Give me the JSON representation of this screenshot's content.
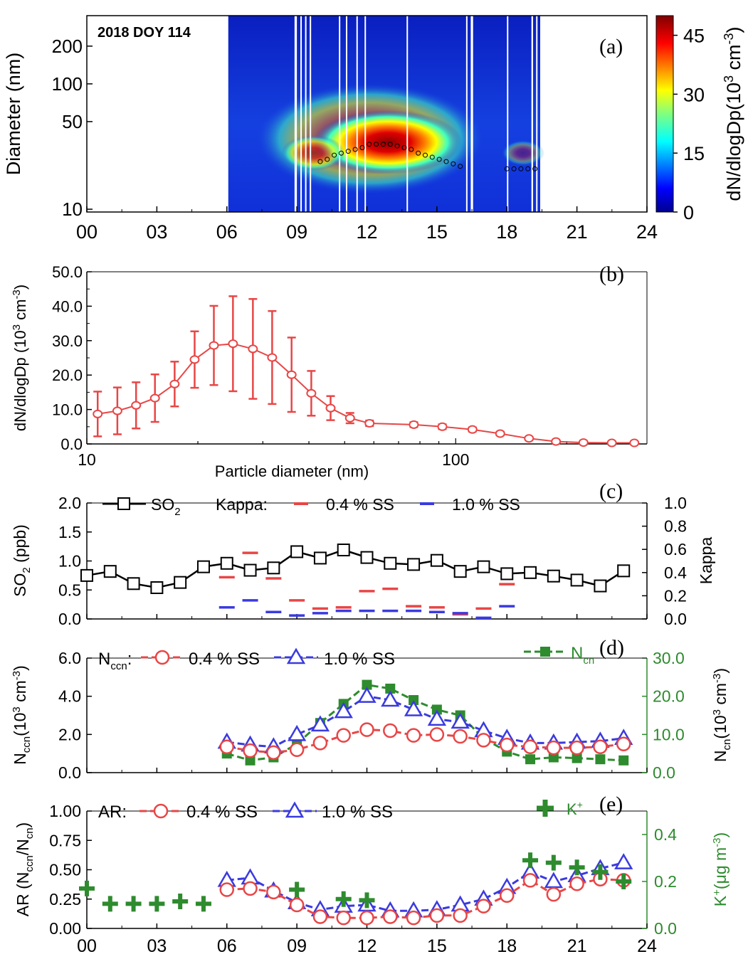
{
  "colors": {
    "red": "#e84646",
    "blue": "#3a3ae0",
    "green": "#2e8b2e",
    "black": "#000000"
  },
  "chart_data": [
    {
      "panel": "(a)",
      "type": "heatmap",
      "annotation": "2018 DOY 114",
      "ylabel": "Diameter (nm)",
      "colorbar_label": "dN/dlogDp(10^3 cm^-3)",
      "colorbar_ticks": [
        "0",
        "15",
        "30",
        "45"
      ],
      "colorbar_range": [
        0,
        50
      ],
      "x_ticks": [
        "00",
        "03",
        "06",
        "09",
        "12",
        "15",
        "18",
        "21",
        "24"
      ],
      "y_ticks": [
        "10",
        "50",
        "100",
        "200"
      ],
      "xlim": [
        0,
        24
      ],
      "ylim": [
        9.5,
        350
      ],
      "ylog": true,
      "data_coverage_hours": [
        6.0,
        19.4
      ],
      "mode_diameter_points": [
        [
          10.0,
          24
        ],
        [
          10.3,
          25
        ],
        [
          10.6,
          27
        ],
        [
          10.9,
          28
        ],
        [
          11.2,
          29
        ],
        [
          11.5,
          30
        ],
        [
          11.8,
          31
        ],
        [
          12.1,
          33
        ],
        [
          12.4,
          33
        ],
        [
          12.7,
          33
        ],
        [
          13.0,
          33
        ],
        [
          13.3,
          32
        ],
        [
          13.6,
          31
        ],
        [
          13.9,
          30
        ],
        [
          14.2,
          28
        ],
        [
          14.5,
          27
        ],
        [
          14.8,
          26
        ],
        [
          15.1,
          25
        ],
        [
          15.4,
          24
        ],
        [
          15.7,
          23
        ],
        [
          16.0,
          22
        ],
        [
          18.0,
          21
        ],
        [
          18.3,
          21
        ],
        [
          18.6,
          21
        ],
        [
          18.9,
          21
        ],
        [
          19.2,
          21
        ]
      ]
    },
    {
      "panel": "(b)",
      "type": "line",
      "xlabel": "Particle diameter (nm)",
      "ylabel": "dN/dlogDp (10^3 cm^-3)",
      "x_ticks": [
        "10",
        "100"
      ],
      "y_ticks": [
        "0.0",
        "10.0",
        "20.0",
        "30.0",
        "40.0",
        "50.0"
      ],
      "xlog": true,
      "xlim": [
        10,
        330
      ],
      "ylim": [
        0,
        50
      ],
      "x": [
        10.7,
        12.1,
        13.6,
        15.3,
        17.3,
        19.6,
        22.1,
        24.9,
        28.2,
        31.8,
        35.9,
        40.6,
        45.8,
        51.7,
        58.4,
        77,
        92,
        111,
        132,
        158,
        187,
        222,
        265,
        305
      ],
      "values": [
        8.7,
        9.6,
        11.2,
        13.3,
        17.4,
        24.5,
        28.6,
        29.1,
        27.6,
        25.1,
        20.1,
        14.7,
        10.4,
        7.5,
        6.0,
        5.6,
        5.0,
        4.2,
        3.0,
        1.6,
        0.7,
        0.4,
        0.3,
        0.3
      ],
      "errors": [
        6.5,
        6.8,
        6.7,
        6.9,
        6.5,
        8.2,
        11.5,
        13.8,
        14.5,
        13.5,
        10.8,
        6.5,
        3.5,
        1.5,
        0.8,
        0.7,
        0.7,
        0.6,
        0.5,
        0.4,
        0.2,
        0.1,
        0.1,
        0.1
      ]
    },
    {
      "panel": "(c)",
      "type": "line",
      "ylabel": "SO2 (ppb)",
      "y2label": "Kappa",
      "y_ticks": [
        "0.0",
        "0.5",
        "1.0",
        "1.5",
        "2.0"
      ],
      "y2_ticks": [
        "0.0",
        "0.2",
        "0.4",
        "0.6",
        "0.8",
        "1.0"
      ],
      "ylim": [
        0,
        2.0
      ],
      "y2lim": [
        0,
        1.0
      ],
      "legend": {
        "so2": "SO",
        "so2_sub": "2",
        "kappa_prefix": "Kappa:",
        "s04": "0.4 % SS",
        "s10": "1.0 % SS"
      },
      "series": [
        {
          "name": "SO2",
          "x": [
            0,
            1,
            2,
            3,
            4,
            5,
            6,
            7,
            8,
            9,
            10,
            11,
            12,
            13,
            14,
            15,
            16,
            17,
            18,
            19,
            20,
            21,
            22,
            23
          ],
          "values": [
            0.75,
            0.82,
            0.61,
            0.54,
            0.63,
            0.9,
            0.96,
            0.84,
            0.88,
            1.16,
            1.05,
            1.19,
            1.06,
            0.96,
            0.94,
            1.01,
            0.82,
            0.9,
            0.78,
            0.8,
            0.74,
            0.67,
            0.57,
            0.83
          ]
        },
        {
          "name": "0.4 % SS",
          "x": [
            6,
            7,
            8,
            9,
            10,
            11,
            12,
            13,
            14,
            15,
            16,
            17,
            18
          ],
          "values": [
            0.36,
            0.57,
            0.35,
            0.16,
            0.09,
            0.1,
            0.24,
            0.26,
            0.11,
            0.1,
            0.04,
            0.09,
            0.3
          ]
        },
        {
          "name": "1.0 % SS",
          "x": [
            6,
            7,
            8,
            9,
            10,
            11,
            12,
            13,
            14,
            15,
            16,
            17,
            18
          ],
          "values": [
            0.1,
            0.16,
            0.06,
            0.03,
            0.05,
            0.07,
            0.07,
            0.07,
            0.07,
            0.06,
            0.05,
            0.01,
            0.11
          ]
        }
      ]
    },
    {
      "panel": "(d)",
      "type": "line",
      "ylabel": "Nccn(10^3 cm^-3)",
      "y2label": "Ncn(10^3 cm^-3)",
      "y_ticks": [
        "0.0",
        "2.0",
        "4.0",
        "6.0"
      ],
      "y2_ticks": [
        "0.0",
        "10.0",
        "20.0",
        "30.0"
      ],
      "ylim": [
        0,
        6.0
      ],
      "y2lim": [
        0,
        30.0
      ],
      "legend": {
        "nccn_main": "N",
        "nccn_sub": "ccn",
        "nccn_colon": ":",
        "s04": "0.4 % SS",
        "s10": "1.0 % SS",
        "ncn_main": "N",
        "ncn_sub": "cn"
      },
      "series": [
        {
          "name": "0.4 % SS",
          "x": [
            6,
            7,
            8,
            9,
            10,
            11,
            12,
            13,
            14,
            15,
            16,
            17,
            18,
            19,
            20,
            21,
            22,
            23
          ],
          "values": [
            1.35,
            1.15,
            1.05,
            1.2,
            1.55,
            1.95,
            2.25,
            2.2,
            1.95,
            2.0,
            1.9,
            1.7,
            1.45,
            1.35,
            1.3,
            1.3,
            1.35,
            1.5
          ]
        },
        {
          "name": "1.0 % SS",
          "x": [
            6,
            7,
            8,
            9,
            10,
            11,
            12,
            13,
            14,
            15,
            16,
            17,
            18,
            19,
            20,
            21,
            22,
            23
          ],
          "values": [
            1.6,
            1.45,
            1.35,
            2.0,
            2.5,
            3.2,
            4.0,
            3.8,
            3.3,
            2.8,
            2.65,
            2.2,
            1.8,
            1.55,
            1.55,
            1.6,
            1.65,
            1.8
          ]
        },
        {
          "name": "Ncn",
          "x": [
            6,
            7,
            8,
            9,
            10,
            11,
            12,
            13,
            14,
            15,
            16,
            17,
            18,
            19,
            20,
            21,
            22,
            23
          ],
          "values": [
            5.0,
            3.2,
            4.0,
            7.5,
            13.0,
            18.0,
            23.0,
            22.0,
            19.0,
            16.5,
            15.0,
            9.0,
            5.5,
            3.5,
            4.0,
            3.8,
            3.5,
            3.2
          ]
        }
      ]
    },
    {
      "panel": "(e)",
      "type": "line",
      "ylabel": "AR (Nccn/Ncn)",
      "y2label": "K+(μg m^-3)",
      "y_ticks": [
        "0.00",
        "0.25",
        "0.50",
        "0.75",
        "1.00"
      ],
      "y2_ticks": [
        "0.0",
        "0.2",
        "0.4"
      ],
      "ylim": [
        0,
        1.0
      ],
      "y2lim": [
        0,
        0.5
      ],
      "x_ticks": [
        "00",
        "03",
        "06",
        "09",
        "12",
        "15",
        "18",
        "21",
        "24"
      ],
      "xlim": [
        0,
        24
      ],
      "legend": {
        "ar": "AR:",
        "s04": "0.4 % SS",
        "s10": "1.0 % SS",
        "k_main": "K",
        "k_sup": "+"
      },
      "series": [
        {
          "name": "0.4 % SS",
          "x": [
            6,
            7,
            8,
            9,
            10,
            11,
            12,
            13,
            14,
            15,
            16,
            17,
            18,
            19,
            20,
            21,
            22,
            23
          ],
          "values": [
            0.33,
            0.34,
            0.31,
            0.2,
            0.1,
            0.09,
            0.09,
            0.1,
            0.09,
            0.11,
            0.11,
            0.19,
            0.28,
            0.41,
            0.29,
            0.38,
            0.42,
            0.41
          ]
        },
        {
          "name": "1.0 % SS",
          "x": [
            6,
            7,
            8,
            9,
            10,
            11,
            12,
            13,
            14,
            15,
            16,
            17,
            18,
            19,
            20,
            21,
            22,
            23
          ],
          "values": [
            0.41,
            0.43,
            0.32,
            0.22,
            0.16,
            0.19,
            0.2,
            0.15,
            0.15,
            0.16,
            0.2,
            0.25,
            0.35,
            0.48,
            0.4,
            0.45,
            0.51,
            0.56
          ]
        },
        {
          "name": "K+",
          "x": [
            0,
            1,
            2,
            3,
            4,
            5,
            9,
            11,
            12,
            19,
            20,
            21,
            22,
            23
          ],
          "values": [
            0.17,
            0.105,
            0.105,
            0.105,
            0.115,
            0.105,
            0.165,
            0.125,
            0.12,
            0.29,
            0.28,
            0.26,
            0.24,
            0.2
          ]
        }
      ]
    }
  ]
}
